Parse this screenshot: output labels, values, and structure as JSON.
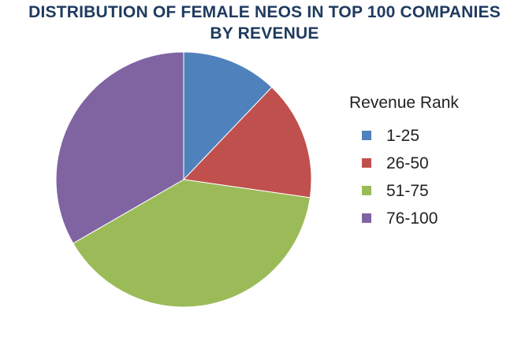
{
  "chart_data": {
    "type": "pie",
    "title_line1": "DISTRIBUTION OF FEMALE NEOS IN TOP 100 COMPANIES",
    "title_line2": "BY REVENUE",
    "legend_title": "Revenue Rank",
    "legend_position": "right",
    "slices": [
      {
        "label": "1-25",
        "value": 4,
        "color": "#4f81bd"
      },
      {
        "label": "26-50",
        "value": 5,
        "color": "#c0504d"
      },
      {
        "label": "51-75",
        "value": 13,
        "color": "#9bbb59"
      },
      {
        "label": "76-100",
        "value": 11,
        "color": "#8064a2"
      }
    ]
  }
}
